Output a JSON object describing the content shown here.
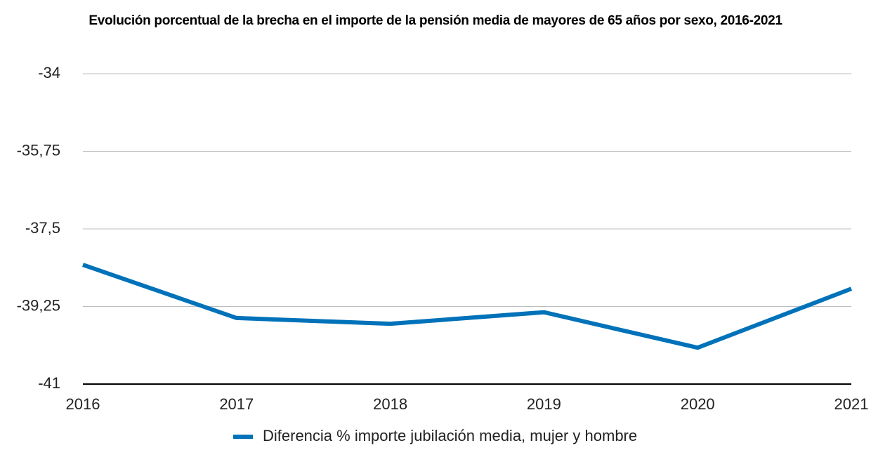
{
  "chart_data": {
    "type": "line",
    "title": "Evolución porcentual de la brecha en el importe de la pensión media de mayores de 65 años por sexo, 2016-2021",
    "categories": [
      "2016",
      "2017",
      "2018",
      "2019",
      "2020",
      "2021"
    ],
    "series": [
      {
        "name": "Diferencia % importe jubilación media, mujer y hombre",
        "color": "#0072b9",
        "values": [
          -38.31,
          -39.51,
          -39.64,
          -39.38,
          -40.18,
          -38.85
        ]
      }
    ],
    "ylim": [
      -41,
      -34
    ],
    "yticks": [
      -41,
      {
        "value": -39.25,
        "label": "-39,25"
      },
      {
        "value": -37.5,
        "label": "-37,5"
      },
      {
        "value": -35.75,
        "label": "-35,75"
      },
      -34
    ],
    "grid": true,
    "legend": "bottom"
  }
}
